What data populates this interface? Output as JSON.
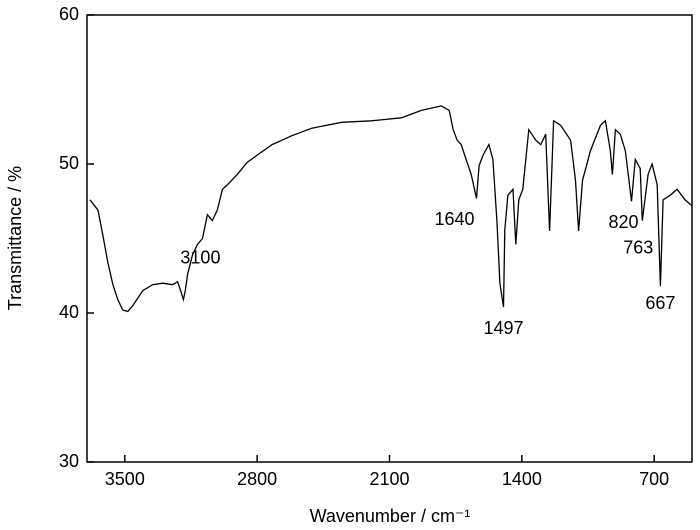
{
  "chart_data": {
    "type": "line",
    "xlabel": "Wavenumber / cm⁻¹",
    "ylabel": "Transmittance / %",
    "xlim": [
      3700,
      500
    ],
    "xticks": [
      3500,
      2800,
      2100,
      1400,
      700
    ],
    "ylim": [
      30,
      60
    ],
    "yticks": [
      30,
      40,
      50,
      60
    ],
    "color": "#000000",
    "x": [
      3684,
      3642,
      3616,
      3590,
      3563,
      3537,
      3511,
      3484,
      3458,
      3405,
      3353,
      3300,
      3247,
      3221,
      3205,
      3190,
      3180,
      3168,
      3142,
      3116,
      3089,
      3063,
      3037,
      3011,
      2984,
      2958,
      2905,
      2853,
      2800,
      2721,
      2616,
      2511,
      2353,
      2195,
      2037,
      1932,
      1826,
      1784,
      1763,
      1742,
      1721,
      1695,
      1668,
      1640,
      1626,
      1605,
      1574,
      1553,
      1532,
      1516,
      1497,
      1490,
      1474,
      1447,
      1432,
      1416,
      1395,
      1363,
      1326,
      1300,
      1274,
      1253,
      1232,
      1195,
      1142,
      1116,
      1100,
      1079,
      1037,
      984,
      958,
      932,
      921,
      905,
      879,
      853,
      820,
      800,
      774,
      763,
      732,
      711,
      684,
      667,
      653,
      616,
      579,
      537,
      500
    ],
    "values": [
      47.6,
      46.9,
      45.2,
      43.4,
      41.9,
      40.9,
      40.2,
      40.1,
      40.5,
      41.5,
      41.9,
      42.0,
      41.9,
      42.1,
      41.5,
      40.9,
      41.5,
      42.6,
      43.9,
      44.6,
      45.0,
      46.6,
      46.2,
      46.9,
      48.3,
      48.6,
      49.3,
      50.1,
      50.6,
      51.3,
      51.9,
      52.4,
      52.8,
      52.9,
      53.1,
      53.6,
      53.9,
      53.6,
      52.3,
      51.6,
      51.3,
      50.3,
      49.3,
      47.7,
      49.9,
      50.6,
      51.3,
      50.3,
      46.2,
      42.0,
      40.4,
      45.6,
      47.9,
      48.3,
      44.6,
      47.6,
      48.3,
      52.3,
      51.6,
      51.3,
      52.0,
      45.5,
      52.9,
      52.6,
      51.6,
      48.9,
      45.5,
      48.9,
      50.9,
      52.6,
      52.9,
      50.9,
      49.3,
      52.3,
      52.0,
      50.9,
      47.5,
      50.3,
      49.7,
      46.2,
      49.3,
      50.0,
      48.6,
      41.8,
      47.6,
      47.9,
      48.3,
      47.6,
      47.2
    ],
    "annotations": [
      {
        "label": "3100",
        "x": 3100
      },
      {
        "label": "1640",
        "x": 1640
      },
      {
        "label": "1497",
        "x": 1497
      },
      {
        "label": "820",
        "x": 820
      },
      {
        "label": "763",
        "x": 763
      },
      {
        "label": "667",
        "x": 667
      }
    ]
  }
}
